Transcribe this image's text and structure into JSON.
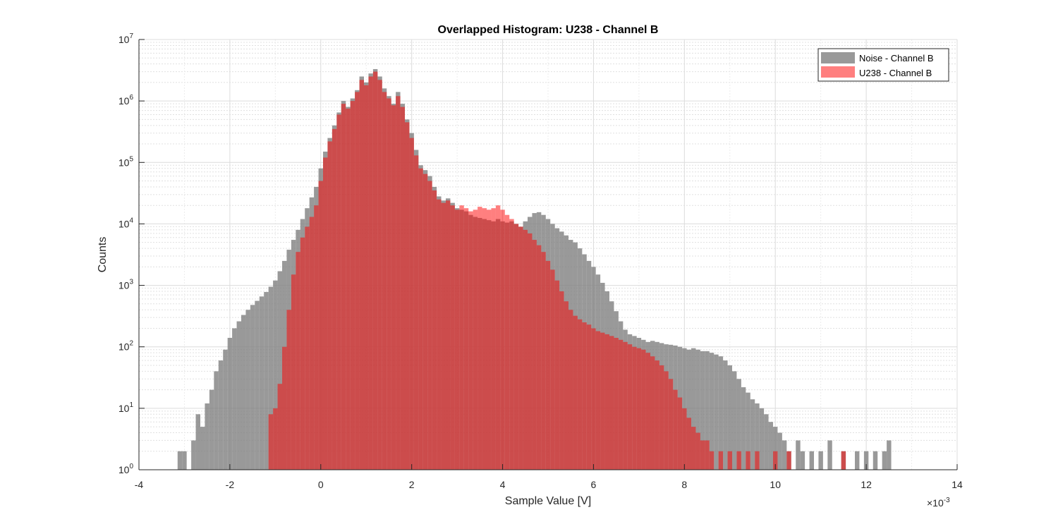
{
  "chart_data": {
    "type": "histogram",
    "title": "Overlapped Histogram: U238 - Channel B",
    "xlabel": "Sample Value [V]",
    "ylabel": "Counts",
    "x_multiplier_label": "×10",
    "x_multiplier_exponent": "-3",
    "x_scale": 0.001,
    "xlim": [
      -4,
      14
    ],
    "ylim": [
      1,
      10000000
    ],
    "y_scale": "log",
    "x_ticks": [
      -4,
      -2,
      0,
      2,
      4,
      6,
      8,
      10,
      12,
      14
    ],
    "y_tick_exponents": [
      0,
      1,
      2,
      3,
      4,
      5,
      6,
      7
    ],
    "y_tick_base": "10",
    "grid": true,
    "minor_grid": true,
    "legend_position": "top-right",
    "series": [
      {
        "name": "Noise - Channel B",
        "color": "#808080",
        "opacity": 0.8,
        "points": [
          [
            -3.1,
            2
          ],
          [
            -3.0,
            2
          ],
          [
            -2.8,
            3
          ],
          [
            -2.7,
            8
          ],
          [
            -2.6,
            5
          ],
          [
            -2.5,
            12
          ],
          [
            -2.4,
            20
          ],
          [
            -2.3,
            40
          ],
          [
            -2.2,
            60
          ],
          [
            -2.1,
            90
          ],
          [
            -2.0,
            140
          ],
          [
            -1.9,
            200
          ],
          [
            -1.8,
            260
          ],
          [
            -1.7,
            330
          ],
          [
            -1.6,
            400
          ],
          [
            -1.5,
            480
          ],
          [
            -1.4,
            560
          ],
          [
            -1.3,
            660
          ],
          [
            -1.2,
            780
          ],
          [
            -1.1,
            950
          ],
          [
            -1.0,
            1200
          ],
          [
            -0.9,
            1700
          ],
          [
            -0.8,
            2500
          ],
          [
            -0.7,
            3800
          ],
          [
            -0.6,
            5500
          ],
          [
            -0.5,
            8000
          ],
          [
            -0.4,
            12000
          ],
          [
            -0.3,
            18000
          ],
          [
            -0.2,
            27000
          ],
          [
            -0.1,
            40000
          ],
          [
            0.0,
            80000
          ],
          [
            0.1,
            150000
          ],
          [
            0.2,
            250000
          ],
          [
            0.3,
            400000
          ],
          [
            0.4,
            650000
          ],
          [
            0.5,
            1000000
          ],
          [
            0.6,
            800000
          ],
          [
            0.7,
            1100000
          ],
          [
            0.8,
            1500000
          ],
          [
            0.9,
            2500000
          ],
          [
            1.0,
            2000000
          ],
          [
            1.1,
            2800000
          ],
          [
            1.2,
            3300000
          ],
          [
            1.3,
            2500000
          ],
          [
            1.4,
            1600000
          ],
          [
            1.5,
            1200000
          ],
          [
            1.6,
            900000
          ],
          [
            1.7,
            1400000
          ],
          [
            1.8,
            900000
          ],
          [
            1.9,
            500000
          ],
          [
            2.0,
            300000
          ],
          [
            2.1,
            160000
          ],
          [
            2.2,
            90000
          ],
          [
            2.3,
            75000
          ],
          [
            2.4,
            60000
          ],
          [
            2.5,
            40000
          ],
          [
            2.6,
            28000
          ],
          [
            2.7,
            24000
          ],
          [
            2.8,
            26000
          ],
          [
            2.9,
            22000
          ],
          [
            3.0,
            18000
          ],
          [
            3.1,
            17000
          ],
          [
            3.2,
            16000
          ],
          [
            3.3,
            14000
          ],
          [
            3.4,
            13000
          ],
          [
            3.5,
            12500
          ],
          [
            3.6,
            12000
          ],
          [
            3.7,
            11500
          ],
          [
            3.8,
            11000
          ],
          [
            3.9,
            12000
          ],
          [
            4.0,
            11000
          ],
          [
            4.1,
            10500
          ],
          [
            4.2,
            11000
          ],
          [
            4.3,
            10000
          ],
          [
            4.4,
            9000
          ],
          [
            4.5,
            11000
          ],
          [
            4.6,
            13000
          ],
          [
            4.7,
            15000
          ],
          [
            4.8,
            15500
          ],
          [
            4.9,
            14000
          ],
          [
            5.0,
            12000
          ],
          [
            5.1,
            10000
          ],
          [
            5.2,
            8500
          ],
          [
            5.3,
            7500
          ],
          [
            5.4,
            6500
          ],
          [
            5.5,
            5500
          ],
          [
            5.6,
            5000
          ],
          [
            5.7,
            4000
          ],
          [
            5.8,
            3200
          ],
          [
            5.9,
            2500
          ],
          [
            6.0,
            2000
          ],
          [
            6.1,
            1500
          ],
          [
            6.2,
            1100
          ],
          [
            6.3,
            800
          ],
          [
            6.4,
            550
          ],
          [
            6.5,
            380
          ],
          [
            6.6,
            260
          ],
          [
            6.7,
            190
          ],
          [
            6.8,
            160
          ],
          [
            6.9,
            150
          ],
          [
            7.0,
            140
          ],
          [
            7.1,
            130
          ],
          [
            7.2,
            120
          ],
          [
            7.3,
            125
          ],
          [
            7.4,
            120
          ],
          [
            7.5,
            115
          ],
          [
            7.6,
            110
          ],
          [
            7.7,
            108
          ],
          [
            7.8,
            105
          ],
          [
            7.9,
            100
          ],
          [
            8.0,
            95
          ],
          [
            8.1,
            90
          ],
          [
            8.2,
            95
          ],
          [
            8.3,
            90
          ],
          [
            8.4,
            85
          ],
          [
            8.5,
            85
          ],
          [
            8.6,
            80
          ],
          [
            8.7,
            75
          ],
          [
            8.8,
            70
          ],
          [
            8.9,
            60
          ],
          [
            9.0,
            50
          ],
          [
            9.1,
            40
          ],
          [
            9.2,
            30
          ],
          [
            9.3,
            22
          ],
          [
            9.4,
            18
          ],
          [
            9.5,
            14
          ],
          [
            9.6,
            12
          ],
          [
            9.7,
            10
          ],
          [
            9.8,
            8
          ],
          [
            9.9,
            6
          ],
          [
            10.0,
            5
          ],
          [
            10.1,
            4
          ],
          [
            10.2,
            3
          ],
          [
            10.3,
            2
          ],
          [
            10.5,
            3
          ],
          [
            10.6,
            2
          ],
          [
            10.8,
            2
          ],
          [
            11.0,
            2
          ],
          [
            11.2,
            3
          ],
          [
            11.5,
            2
          ],
          [
            11.8,
            2
          ],
          [
            12.0,
            2
          ],
          [
            12.2,
            2
          ],
          [
            12.4,
            2
          ],
          [
            12.5,
            3
          ]
        ]
      },
      {
        "name": "U238 - Channel B",
        "color": "#ff0000",
        "opacity": 0.5,
        "points": [
          [
            -1.1,
            8
          ],
          [
            -1.0,
            10
          ],
          [
            -0.9,
            25
          ],
          [
            -0.8,
            100
          ],
          [
            -0.7,
            400
          ],
          [
            -0.6,
            1500
          ],
          [
            -0.5,
            3500
          ],
          [
            -0.4,
            6000
          ],
          [
            -0.3,
            9000
          ],
          [
            -0.2,
            13000
          ],
          [
            -0.1,
            20000
          ],
          [
            0.0,
            50000
          ],
          [
            0.1,
            120000
          ],
          [
            0.2,
            220000
          ],
          [
            0.3,
            350000
          ],
          [
            0.4,
            600000
          ],
          [
            0.5,
            900000
          ],
          [
            0.6,
            750000
          ],
          [
            0.7,
            1000000
          ],
          [
            0.8,
            1400000
          ],
          [
            0.9,
            2200000
          ],
          [
            1.0,
            1800000
          ],
          [
            1.1,
            2500000
          ],
          [
            1.2,
            3000000
          ],
          [
            1.3,
            2200000
          ],
          [
            1.4,
            1400000
          ],
          [
            1.5,
            1100000
          ],
          [
            1.6,
            850000
          ],
          [
            1.7,
            1200000
          ],
          [
            1.8,
            800000
          ],
          [
            1.9,
            450000
          ],
          [
            2.0,
            250000
          ],
          [
            2.1,
            130000
          ],
          [
            2.2,
            80000
          ],
          [
            2.3,
            65000
          ],
          [
            2.4,
            50000
          ],
          [
            2.5,
            35000
          ],
          [
            2.6,
            25000
          ],
          [
            2.7,
            22000
          ],
          [
            2.8,
            24000
          ],
          [
            2.9,
            20000
          ],
          [
            3.0,
            17000
          ],
          [
            3.1,
            20000
          ],
          [
            3.2,
            18000
          ],
          [
            3.3,
            16000
          ],
          [
            3.4,
            17000
          ],
          [
            3.5,
            19000
          ],
          [
            3.6,
            18000
          ],
          [
            3.7,
            17000
          ],
          [
            3.8,
            18000
          ],
          [
            3.9,
            20000
          ],
          [
            4.0,
            17000
          ],
          [
            4.1,
            14000
          ],
          [
            4.2,
            12000
          ],
          [
            4.3,
            10000
          ],
          [
            4.4,
            9000
          ],
          [
            4.5,
            8000
          ],
          [
            4.6,
            7000
          ],
          [
            4.7,
            5500
          ],
          [
            4.8,
            4500
          ],
          [
            4.9,
            3500
          ],
          [
            5.0,
            2500
          ],
          [
            5.1,
            1800
          ],
          [
            5.2,
            1200
          ],
          [
            5.3,
            800
          ],
          [
            5.4,
            550
          ],
          [
            5.5,
            400
          ],
          [
            5.6,
            320
          ],
          [
            5.7,
            280
          ],
          [
            5.8,
            250
          ],
          [
            5.9,
            230
          ],
          [
            6.0,
            200
          ],
          [
            6.1,
            180
          ],
          [
            6.2,
            170
          ],
          [
            6.3,
            160
          ],
          [
            6.4,
            150
          ],
          [
            6.5,
            140
          ],
          [
            6.6,
            130
          ],
          [
            6.7,
            120
          ],
          [
            6.8,
            110
          ],
          [
            6.9,
            100
          ],
          [
            7.0,
            95
          ],
          [
            7.1,
            90
          ],
          [
            7.2,
            80
          ],
          [
            7.3,
            70
          ],
          [
            7.4,
            60
          ],
          [
            7.5,
            50
          ],
          [
            7.6,
            40
          ],
          [
            7.7,
            30
          ],
          [
            7.8,
            20
          ],
          [
            7.9,
            15
          ],
          [
            8.0,
            10
          ],
          [
            8.1,
            7
          ],
          [
            8.2,
            5
          ],
          [
            8.3,
            4
          ],
          [
            8.4,
            3
          ],
          [
            8.5,
            3
          ],
          [
            8.6,
            2
          ],
          [
            8.8,
            2
          ],
          [
            9.0,
            2
          ],
          [
            9.2,
            2
          ],
          [
            9.4,
            2
          ],
          [
            9.6,
            2
          ],
          [
            10.0,
            2
          ],
          [
            10.3,
            2
          ],
          [
            11.5,
            2
          ]
        ]
      }
    ]
  }
}
